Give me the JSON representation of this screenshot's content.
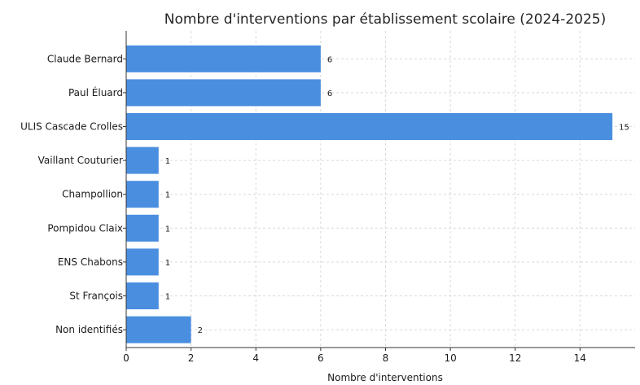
{
  "chart_data": {
    "type": "bar",
    "orientation": "horizontal",
    "title": "Nombre d'interventions par établissement scolaire (2024-2025)",
    "xlabel": "Nombre d'interventions",
    "ylabel": "",
    "categories": [
      "Claude Bernard",
      "Paul Éluard",
      "ULIS Cascade Crolles",
      "Vaillant Couturier",
      "Champollion",
      "Pompidou Claix",
      "ENS Chabons",
      "St François",
      "Non identifiés"
    ],
    "values": [
      6,
      6,
      15,
      1,
      1,
      1,
      1,
      1,
      2
    ],
    "value_labels": [
      "6",
      "6",
      "15",
      "1",
      "1",
      "1",
      "1",
      "1",
      "2"
    ],
    "xlim": [
      0,
      15.7
    ],
    "xticks": [
      0,
      2,
      4,
      6,
      8,
      10,
      12,
      14
    ],
    "xtick_labels": [
      "0",
      "2",
      "4",
      "6",
      "8",
      "10",
      "12",
      "14"
    ],
    "grid": true,
    "bar_color": "#4a8ee0"
  }
}
